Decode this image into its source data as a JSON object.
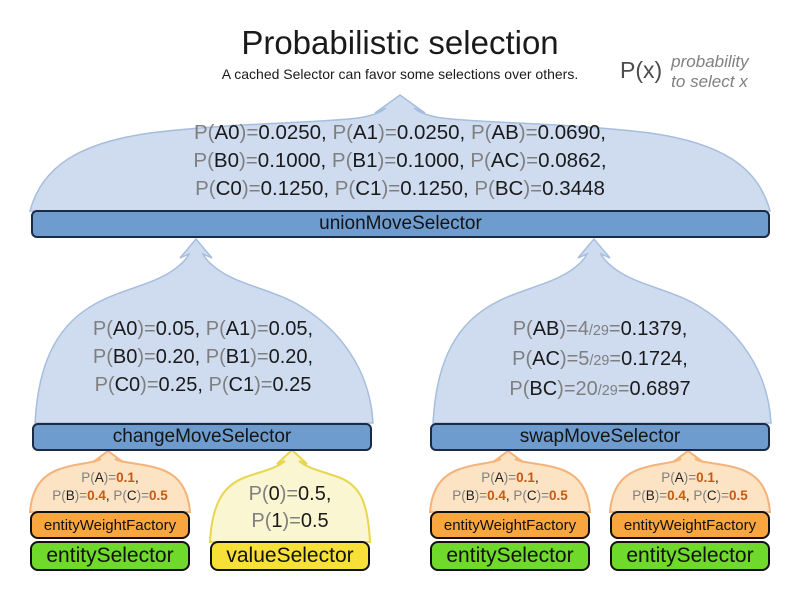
{
  "title": "Probabilistic selection",
  "subtitle": "A cached Selector can favor some selections over others.",
  "legend": {
    "symbol": "P(x)",
    "note_line1": "probability",
    "note_line2": "to select x"
  },
  "colors": {
    "funnel_blue": "#cfdcf0",
    "selector_bar_blue": "#6f9cce",
    "funnel_orange": "#fce3c3",
    "box_orange": "#f9a640",
    "box_green": "#6fd92c",
    "funnel_yellow": "#fbf6d2",
    "box_yellow": "#f7e139",
    "probability_value_orange": "#c55a11",
    "notation_gray": "#7f7f7f"
  },
  "bars": {
    "union": "unionMoveSelector",
    "change": "changeMoveSelector",
    "swap": "swapMoveSelector"
  },
  "boxes": {
    "weight": "entityWeightFactory",
    "entity": "entitySelector",
    "value": "valueSelector"
  },
  "union_funnel": {
    "lines": [
      [
        {
          "t": "P(",
          "s": "g"
        },
        {
          "t": "A0",
          "s": "k"
        },
        {
          "t": ")=",
          "s": "g"
        },
        {
          "t": "0.0250, ",
          "s": "k"
        },
        {
          "t": "P(",
          "s": "g"
        },
        {
          "t": "A1",
          "s": "k"
        },
        {
          "t": ")=",
          "s": "g"
        },
        {
          "t": "0.0250, ",
          "s": "k"
        },
        {
          "t": "P(",
          "s": "g"
        },
        {
          "t": "AB",
          "s": "k"
        },
        {
          "t": ")=",
          "s": "g"
        },
        {
          "t": "0.0690,",
          "s": "k"
        }
      ],
      [
        {
          "t": "P(",
          "s": "g"
        },
        {
          "t": "B0",
          "s": "k"
        },
        {
          "t": ")=",
          "s": "g"
        },
        {
          "t": "0.1000, ",
          "s": "k"
        },
        {
          "t": "P(",
          "s": "g"
        },
        {
          "t": "B1",
          "s": "k"
        },
        {
          "t": ")=",
          "s": "g"
        },
        {
          "t": "0.1000, ",
          "s": "k"
        },
        {
          "t": "P(",
          "s": "g"
        },
        {
          "t": "AC",
          "s": "k"
        },
        {
          "t": ")=",
          "s": "g"
        },
        {
          "t": "0.0862,",
          "s": "k"
        }
      ],
      [
        {
          "t": "P(",
          "s": "g"
        },
        {
          "t": "C0",
          "s": "k"
        },
        {
          "t": ")=",
          "s": "g"
        },
        {
          "t": "0.1250, ",
          "s": "k"
        },
        {
          "t": "P(",
          "s": "g"
        },
        {
          "t": "C1",
          "s": "k"
        },
        {
          "t": ")=",
          "s": "g"
        },
        {
          "t": "0.1250, ",
          "s": "k"
        },
        {
          "t": "P(",
          "s": "g"
        },
        {
          "t": "BC",
          "s": "k"
        },
        {
          "t": ")=",
          "s": "g"
        },
        {
          "t": "0.3448",
          "s": "k"
        }
      ]
    ]
  },
  "change_funnel": {
    "lines": [
      [
        {
          "t": "P(",
          "s": "g"
        },
        {
          "t": "A0",
          "s": "k"
        },
        {
          "t": ")=",
          "s": "g"
        },
        {
          "t": "0.05, ",
          "s": "k"
        },
        {
          "t": "P(",
          "s": "g"
        },
        {
          "t": "A1",
          "s": "k"
        },
        {
          "t": ")=",
          "s": "g"
        },
        {
          "t": "0.05,",
          "s": "k"
        }
      ],
      [
        {
          "t": "P(",
          "s": "g"
        },
        {
          "t": "B0",
          "s": "k"
        },
        {
          "t": ")=",
          "s": "g"
        },
        {
          "t": "0.20, ",
          "s": "k"
        },
        {
          "t": "P(",
          "s": "g"
        },
        {
          "t": "B1",
          "s": "k"
        },
        {
          "t": ")=",
          "s": "g"
        },
        {
          "t": "0.20,",
          "s": "k"
        }
      ],
      [
        {
          "t": "P(",
          "s": "g"
        },
        {
          "t": "C0",
          "s": "k"
        },
        {
          "t": ")=",
          "s": "g"
        },
        {
          "t": "0.25, ",
          "s": "k"
        },
        {
          "t": "P(",
          "s": "g"
        },
        {
          "t": "C1",
          "s": "k"
        },
        {
          "t": ")=",
          "s": "g"
        },
        {
          "t": "0.25",
          "s": "k"
        }
      ]
    ]
  },
  "swap_funnel": {
    "lines": [
      [
        {
          "t": "P(",
          "s": "g"
        },
        {
          "t": "AB",
          "s": "k"
        },
        {
          "t": ")=",
          "s": "g"
        },
        {
          "t": "4",
          "s": "g"
        },
        {
          "t": "/29",
          "s": "gs"
        },
        {
          "t": "=",
          "s": "g"
        },
        {
          "t": "0.1379,",
          "s": "k"
        }
      ],
      [
        {
          "t": "P(",
          "s": "g"
        },
        {
          "t": "AC",
          "s": "k"
        },
        {
          "t": ")=",
          "s": "g"
        },
        {
          "t": "5",
          "s": "g"
        },
        {
          "t": "/29",
          "s": "gs"
        },
        {
          "t": "=",
          "s": "g"
        },
        {
          "t": "0.1724,",
          "s": "k"
        }
      ],
      [
        {
          "t": "P(",
          "s": "g"
        },
        {
          "t": "BC",
          "s": "k"
        },
        {
          "t": ")=",
          "s": "g"
        },
        {
          "t": "20",
          "s": "g"
        },
        {
          "t": "/29",
          "s": "gs"
        },
        {
          "t": "=",
          "s": "g"
        },
        {
          "t": "0.6897",
          "s": "k"
        }
      ]
    ]
  },
  "weight_funnel": {
    "lines": [
      [
        {
          "t": "P(",
          "s": "g"
        },
        {
          "t": "A",
          "s": "k"
        },
        {
          "t": ")=",
          "s": "g"
        },
        {
          "t": "0.1",
          "s": "o"
        },
        {
          "t": ",",
          "s": "k"
        }
      ],
      [
        {
          "t": "P(",
          "s": "g"
        },
        {
          "t": "B",
          "s": "k"
        },
        {
          "t": ")=",
          "s": "g"
        },
        {
          "t": "0.4",
          "s": "o"
        },
        {
          "t": ", ",
          "s": "k"
        },
        {
          "t": "P(",
          "s": "g"
        },
        {
          "t": "C",
          "s": "k"
        },
        {
          "t": ")=",
          "s": "g"
        },
        {
          "t": "0.5",
          "s": "o"
        }
      ]
    ]
  },
  "value_funnel": {
    "lines": [
      [
        {
          "t": "P(",
          "s": "g"
        },
        {
          "t": "0",
          "s": "k"
        },
        {
          "t": ")=",
          "s": "g"
        },
        {
          "t": "0.5,",
          "s": "k"
        }
      ],
      [
        {
          "t": "P(",
          "s": "g"
        },
        {
          "t": "1",
          "s": "k"
        },
        {
          "t": ")=",
          "s": "g"
        },
        {
          "t": "0.5",
          "s": "k"
        }
      ]
    ]
  }
}
